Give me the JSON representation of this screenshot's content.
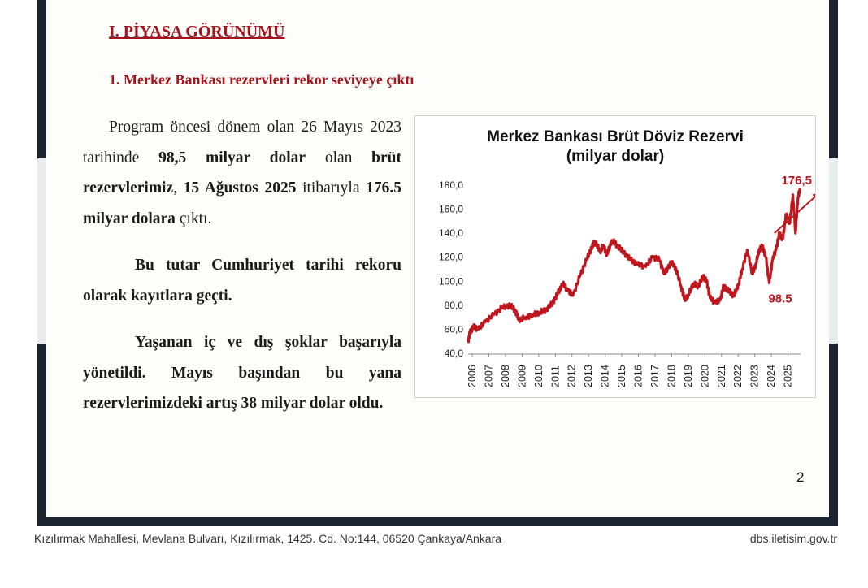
{
  "section": {
    "title": "I. PİYASA GÖRÜNÜMÜ"
  },
  "subsection": {
    "title": "1. Merkez Bankası rezervleri rekor seviyeye çıktı"
  },
  "paragraphs": {
    "p1": [
      {
        "text": "Program öncesi dönem olan 26 Mayıs 2023 tarihinde ",
        "bold": false
      },
      {
        "text": "98,5 milyar dolar",
        "bold": true
      },
      {
        "text": " olan ",
        "bold": false
      },
      {
        "text": "brüt rezervlerimiz",
        "bold": true
      },
      {
        "text": ", ",
        "bold": false
      },
      {
        "text": "15 Ağustos 2025",
        "bold": true
      },
      {
        "text": " itibarıyla ",
        "bold": false
      },
      {
        "text": "176.5 milyar dolara",
        "bold": true
      },
      {
        "text": " çıktı.",
        "bold": false
      }
    ],
    "p2": "Bu tutar Cumhuriyet tarihi rekoru olarak kayıtlara geçti.",
    "p3": "Yaşanan iç ve dış şoklar başarıyla yönetildi. Mayıs başından bu yana rezervlerimizdeki artış 38 milyar dolar oldu."
  },
  "chart_data": {
    "type": "line",
    "title": "Merkez Bankası Brüt Döviz Rezervi",
    "subtitle": "(milyar dolar)",
    "xlabel": "",
    "ylabel": "",
    "ylim": [
      40,
      180
    ],
    "yticks": [
      "40,0",
      "60,0",
      "80,0",
      "100,0",
      "120,0",
      "140,0",
      "160,0",
      "180,0"
    ],
    "xticks": [
      "2006",
      "2007",
      "2008",
      "2009",
      "2010",
      "2011",
      "2012",
      "2013",
      "2014",
      "2015",
      "2016",
      "2017",
      "2018",
      "2019",
      "2020",
      "2021",
      "2022",
      "2023",
      "2024",
      "2025"
    ],
    "grid": false,
    "legend": "none",
    "color": "#c0171e",
    "series": [
      {
        "x": [
          2006.0,
          2006.1,
          2006.3,
          2006.6,
          2007.0,
          2007.5,
          2008.0,
          2008.5,
          2008.8,
          2009.0,
          2009.4,
          2009.8,
          2010.2,
          2010.6,
          2011.0,
          2011.3,
          2011.6,
          2011.9,
          2012.2,
          2012.6,
          2013.0,
          2013.3,
          2013.5,
          2013.8,
          2014.0,
          2014.2,
          2014.5,
          2014.8,
          2015.2,
          2015.6,
          2016.0,
          2016.5,
          2016.9,
          2017.3,
          2017.6,
          2018.0,
          2018.3,
          2018.6,
          2018.8,
          2019.0,
          2019.3,
          2019.6,
          2019.9,
          2020.1,
          2020.3,
          2020.6,
          2020.9,
          2021.1,
          2021.4,
          2021.7,
          2022.0,
          2022.2,
          2022.5,
          2022.8,
          2023.0,
          2023.2,
          2023.4,
          2023.6,
          2023.8,
          2024.0,
          2024.2,
          2024.4,
          2024.6,
          2024.8,
          2025.0,
          2025.2,
          2025.35,
          2025.5,
          2025.62
        ],
        "values": [
          50,
          57,
          62,
          60,
          66,
          72,
          78,
          80,
          75,
          68,
          70,
          72,
          74,
          76,
          82,
          90,
          98,
          92,
          88,
          104,
          118,
          128,
          133,
          125,
          130,
          122,
          134,
          130,
          124,
          118,
          114,
          112,
          120,
          118,
          106,
          116,
          110,
          95,
          85,
          88,
          98,
          96,
          104,
          100,
          86,
          82,
          84,
          96,
          92,
          88,
          98,
          110,
          126,
          106,
          114,
          126,
          129,
          120,
          98.5,
          118,
          126,
          140,
          135,
          156,
          148,
          172,
          140,
          170,
          176.5
        ]
      }
    ],
    "annotations": [
      {
        "text": "176,5",
        "x": 2025.62,
        "y": 176.5
      },
      {
        "text": "98.5",
        "x": 2023.8,
        "y": 98.5
      }
    ]
  },
  "page_number": "2",
  "footer": {
    "address": "Kızılırmak Mahallesi, Mevlana Bulvarı, Kızılırmak, 1425. Cd. No:144, 06520 Çankaya/Ankara",
    "website": "dbs.iletisim.gov.tr"
  }
}
